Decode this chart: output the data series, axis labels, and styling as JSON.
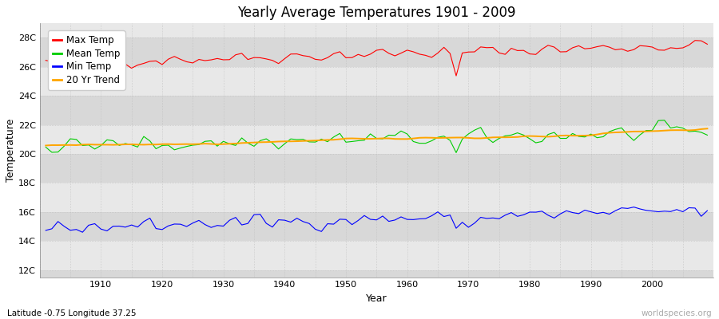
{
  "title": "Yearly Average Temperatures 1901 - 2009",
  "xlabel": "Year",
  "ylabel": "Temperature",
  "years_start": 1901,
  "years_end": 2009,
  "yticks": [
    12,
    14,
    16,
    18,
    20,
    22,
    24,
    26,
    28
  ],
  "ytick_labels": [
    "12C",
    "14C",
    "16C",
    "18C",
    "20C",
    "22C",
    "24C",
    "26C",
    "28C"
  ],
  "ylim": [
    11.5,
    29.0
  ],
  "xlim": [
    1900,
    2010
  ],
  "fig_bg_color": "#ffffff",
  "band_light": "#e8e8e8",
  "band_dark": "#d8d8d8",
  "grid_color": "#bbbbbb",
  "max_temp_color": "#ff0000",
  "mean_temp_color": "#00cc00",
  "min_temp_color": "#0000ff",
  "trend_color": "#ffa500",
  "legend_labels": [
    "Max Temp",
    "Mean Temp",
    "Min Temp",
    "20 Yr Trend"
  ],
  "subtitle": "Latitude -0.75 Longitude 37.25",
  "watermark": "worldspecies.org",
  "linewidth": 0.8
}
